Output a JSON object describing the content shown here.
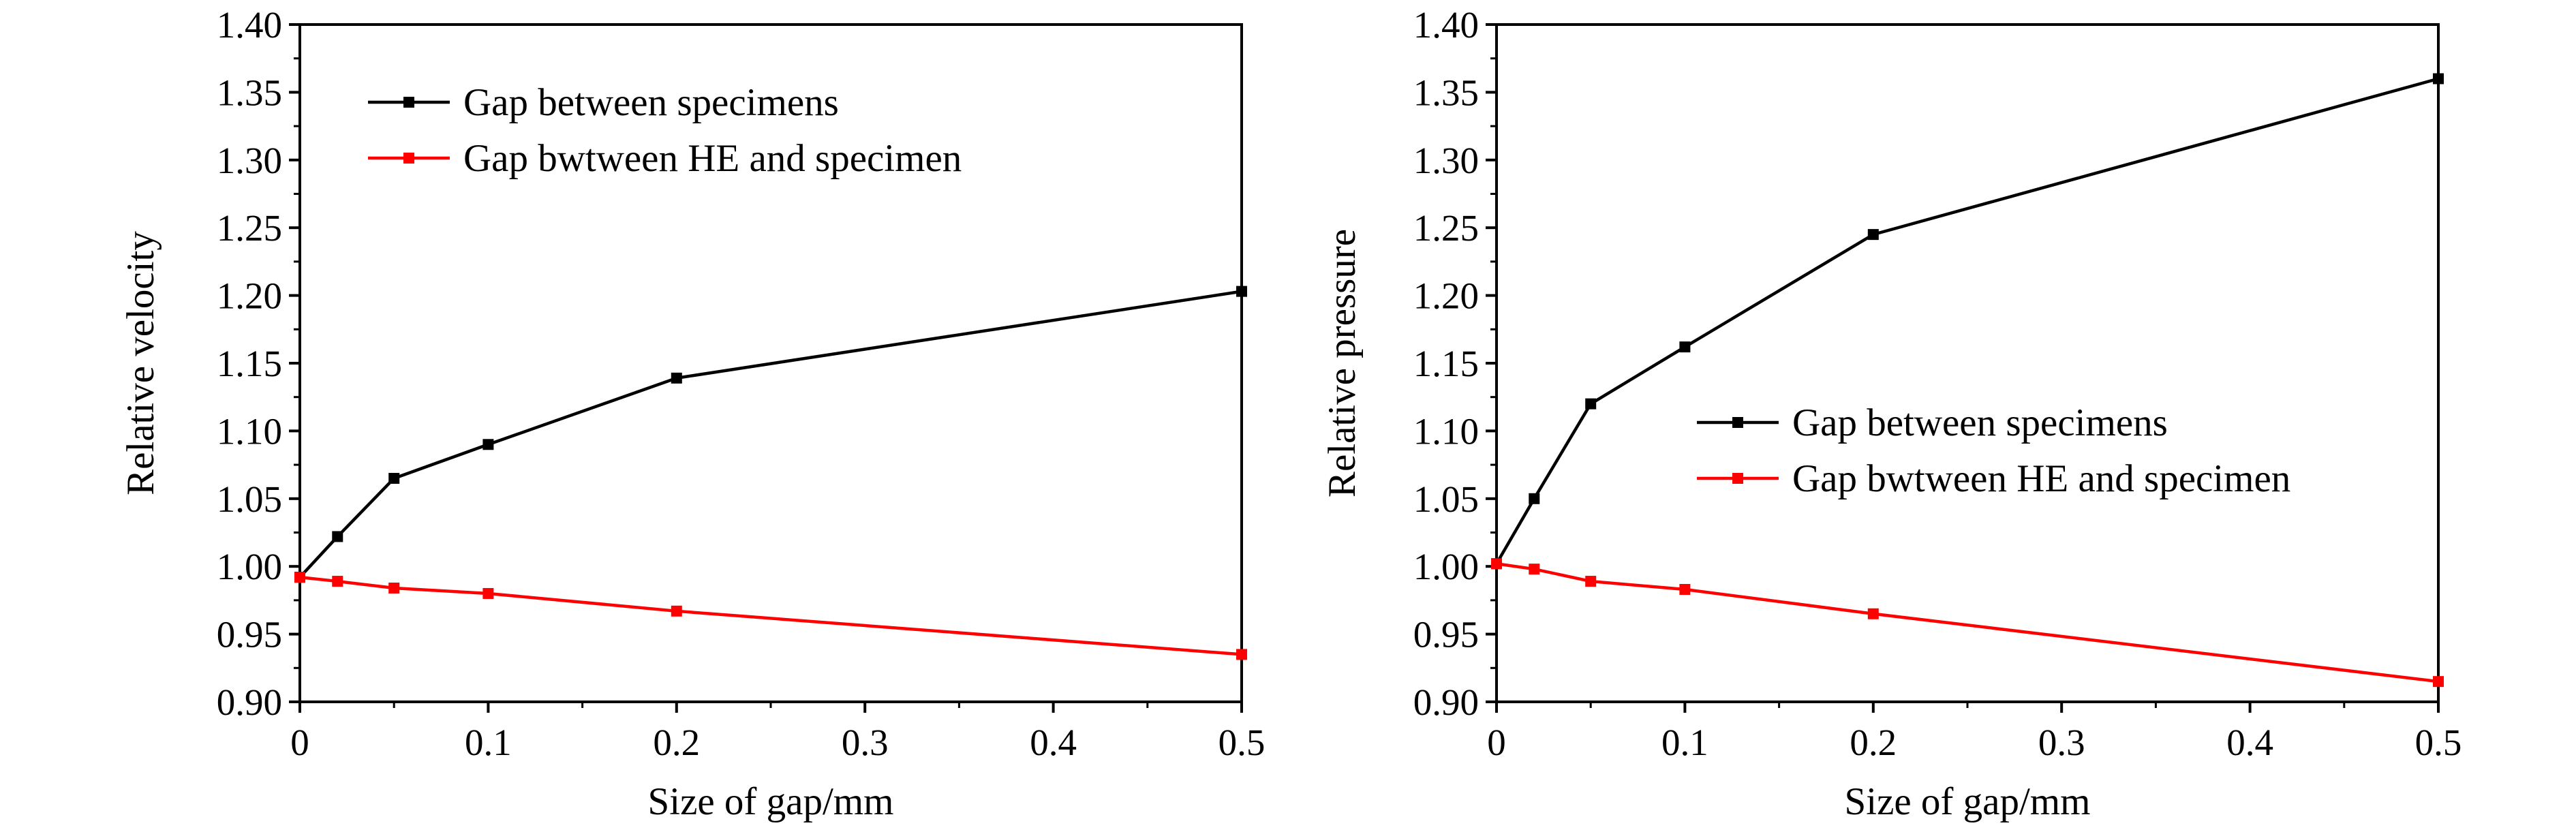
{
  "chart_data": [
    {
      "type": "line",
      "xlabel": "Size of gap/mm",
      "ylabel": "Relative velocity",
      "x": [
        0,
        0.02,
        0.05,
        0.1,
        0.2,
        0.5
      ],
      "xticks": [
        "0",
        "0.1",
        "0.2",
        "0.3",
        "0.4",
        "0.5"
      ],
      "yticks": [
        "0.90",
        "0.95",
        "1.00",
        "1.05",
        "1.10",
        "1.15",
        "1.20",
        "1.25",
        "1.30",
        "1.35",
        "1.40"
      ],
      "xlim": [
        0,
        0.5
      ],
      "ylim": [
        0.9,
        1.4
      ],
      "legend_position": "top-left",
      "series": [
        {
          "name": "Gap between specimens",
          "color": "#000000",
          "values": [
            0.992,
            1.022,
            1.065,
            1.09,
            1.139,
            1.203
          ]
        },
        {
          "name": "Gap bwtween HE and specimen",
          "color": "#ff0000",
          "values": [
            0.992,
            0.989,
            0.984,
            0.98,
            0.967,
            0.935
          ]
        }
      ]
    },
    {
      "type": "line",
      "xlabel": "Size of gap/mm",
      "ylabel": "Relative pressure",
      "x": [
        0,
        0.02,
        0.05,
        0.1,
        0.2,
        0.5
      ],
      "xticks": [
        "0",
        "0.1",
        "0.2",
        "0.3",
        "0.4",
        "0.5"
      ],
      "yticks": [
        "0.90",
        "0.95",
        "1.00",
        "1.05",
        "1.10",
        "1.15",
        "1.20",
        "1.25",
        "1.30",
        "1.35",
        "1.40"
      ],
      "xlim": [
        0,
        0.5
      ],
      "ylim": [
        0.9,
        1.4
      ],
      "legend_position": "center-right",
      "series": [
        {
          "name": "Gap between specimens",
          "color": "#000000",
          "values": [
            1.002,
            1.05,
            1.12,
            1.162,
            1.245,
            1.36
          ]
        },
        {
          "name": "Gap bwtween HE and specimen",
          "color": "#ff0000",
          "values": [
            1.002,
            0.998,
            0.989,
            0.983,
            0.965,
            0.915
          ]
        }
      ]
    }
  ]
}
